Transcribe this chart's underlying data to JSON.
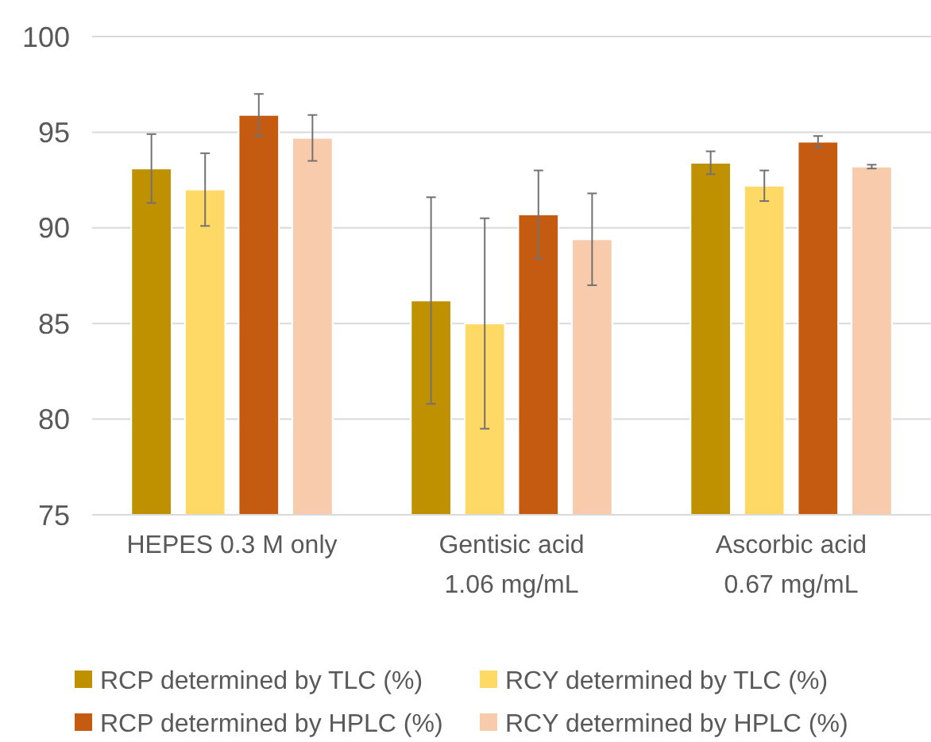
{
  "chart_data": {
    "type": "bar",
    "categories": [
      "HEPES 0.3 M only",
      "Gentisic acid\n1.06 mg/mL",
      "Ascorbic acid\n0.67 mg/mL"
    ],
    "series": [
      {
        "name": "RCP determined by TLC (%)",
        "color": "#bf9000",
        "values": [
          93.1,
          86.2,
          93.4
        ],
        "errors": [
          1.8,
          5.4,
          0.6
        ]
      },
      {
        "name": "RCY determined by TLC (%)",
        "color": "#ffd966",
        "values": [
          92.0,
          85.0,
          92.2
        ],
        "errors": [
          1.9,
          5.5,
          0.8
        ]
      },
      {
        "name": "RCP determined by HPLC (%)",
        "color": "#c55a11",
        "values": [
          95.9,
          90.7,
          94.5
        ],
        "errors": [
          1.1,
          2.3,
          0.3
        ]
      },
      {
        "name": "RCY determined by HPLC (%)",
        "color": "#f8cbad",
        "values": [
          94.7,
          89.4,
          93.2
        ],
        "errors": [
          1.2,
          2.4,
          0.1
        ]
      }
    ],
    "ylim": [
      75,
      100
    ],
    "yticks": [
      75,
      80,
      85,
      90,
      95,
      100
    ],
    "grid": "y",
    "legend": "bottom"
  }
}
